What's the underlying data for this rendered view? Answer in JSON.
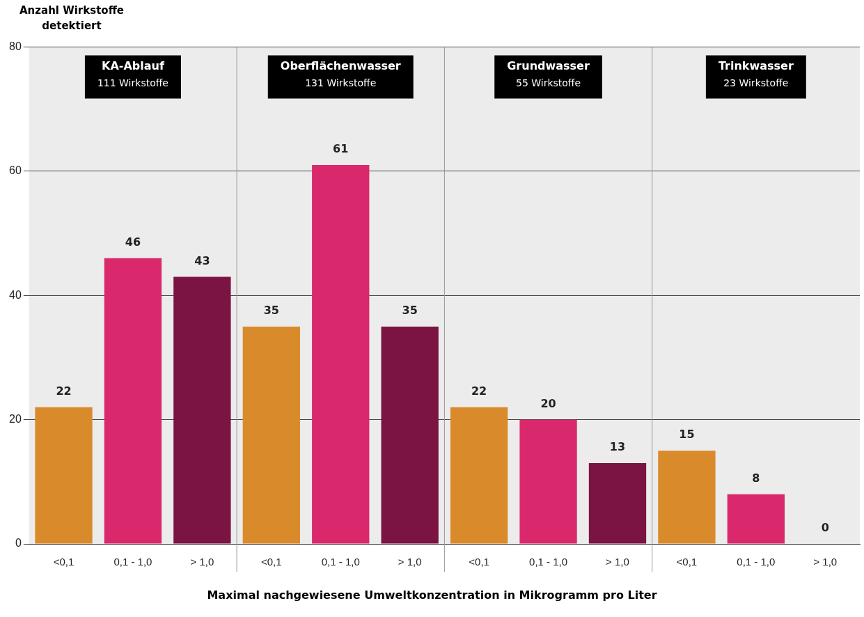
{
  "chart_data": {
    "type": "bar",
    "ylabel": "Anzahl Wirkstoffe detektiert",
    "xlabel": "Maximal nachgewiesene Umweltkonzentration in Mikrogramm pro Liter",
    "categories": [
      "<0,1",
      "0,1 - 1,0",
      "> 1,0",
      "<0,1",
      "0,1 - 1,0",
      "> 1,0",
      "<0,1",
      "0,1 - 1,0",
      "> 1,0",
      "<0,1",
      "0,1 - 1,0",
      "> 1,0"
    ],
    "values": [
      22,
      46,
      43,
      35,
      61,
      35,
      22,
      20,
      13,
      15,
      8,
      0
    ],
    "colors": [
      "#d98b2b",
      "#d9286c",
      "#7b1442",
      "#d98b2b",
      "#d9286c",
      "#7b1442",
      "#d98b2b",
      "#d9286c",
      "#7b1442",
      "#d98b2b",
      "#d9286c",
      "#7b1442"
    ],
    "ylim": [
      0,
      80
    ],
    "yticks": [
      0,
      20,
      40,
      60,
      80
    ],
    "grid": "y",
    "data_labels": true,
    "legend": false,
    "annotations": [
      "KA-Ablauf\n111 Wirkstoffe",
      "Oberflächenwasser\n131 Wirkstoffe",
      "Grundwasser\n55 Wirkstoffe",
      "Trinkwasser\n23 Wirkstoffe"
    ]
  }
}
